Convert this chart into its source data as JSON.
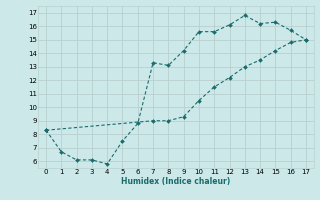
{
  "xlabel": "Humidex (Indice chaleur)",
  "background_color": "#cce8e8",
  "grid_color": "#b8d0d0",
  "line_color": "#1a6b6b",
  "xlim": [
    -0.5,
    17.5
  ],
  "ylim": [
    5.5,
    17.5
  ],
  "xticks": [
    0,
    1,
    2,
    3,
    4,
    5,
    6,
    7,
    8,
    9,
    10,
    11,
    12,
    13,
    14,
    15,
    16,
    17
  ],
  "yticks": [
    6,
    7,
    8,
    9,
    10,
    11,
    12,
    13,
    14,
    15,
    16,
    17
  ],
  "upper_x": [
    0,
    1,
    2,
    3,
    4,
    5,
    6,
    7,
    8,
    9,
    10,
    11,
    12,
    13,
    14,
    15,
    16,
    17
  ],
  "upper_y": [
    8.3,
    6.7,
    6.1,
    6.1,
    5.8,
    7.5,
    8.8,
    13.3,
    13.1,
    14.2,
    15.6,
    15.6,
    16.1,
    16.8,
    16.2,
    16.3,
    15.7,
    15.0
  ],
  "lower_x": [
    0,
    7,
    8,
    9,
    10,
    11,
    12,
    13,
    14,
    15,
    16,
    17
  ],
  "lower_y": [
    8.3,
    9.0,
    9.0,
    9.3,
    10.5,
    11.5,
    12.2,
    13.0,
    13.5,
    14.2,
    14.8,
    15.0
  ]
}
